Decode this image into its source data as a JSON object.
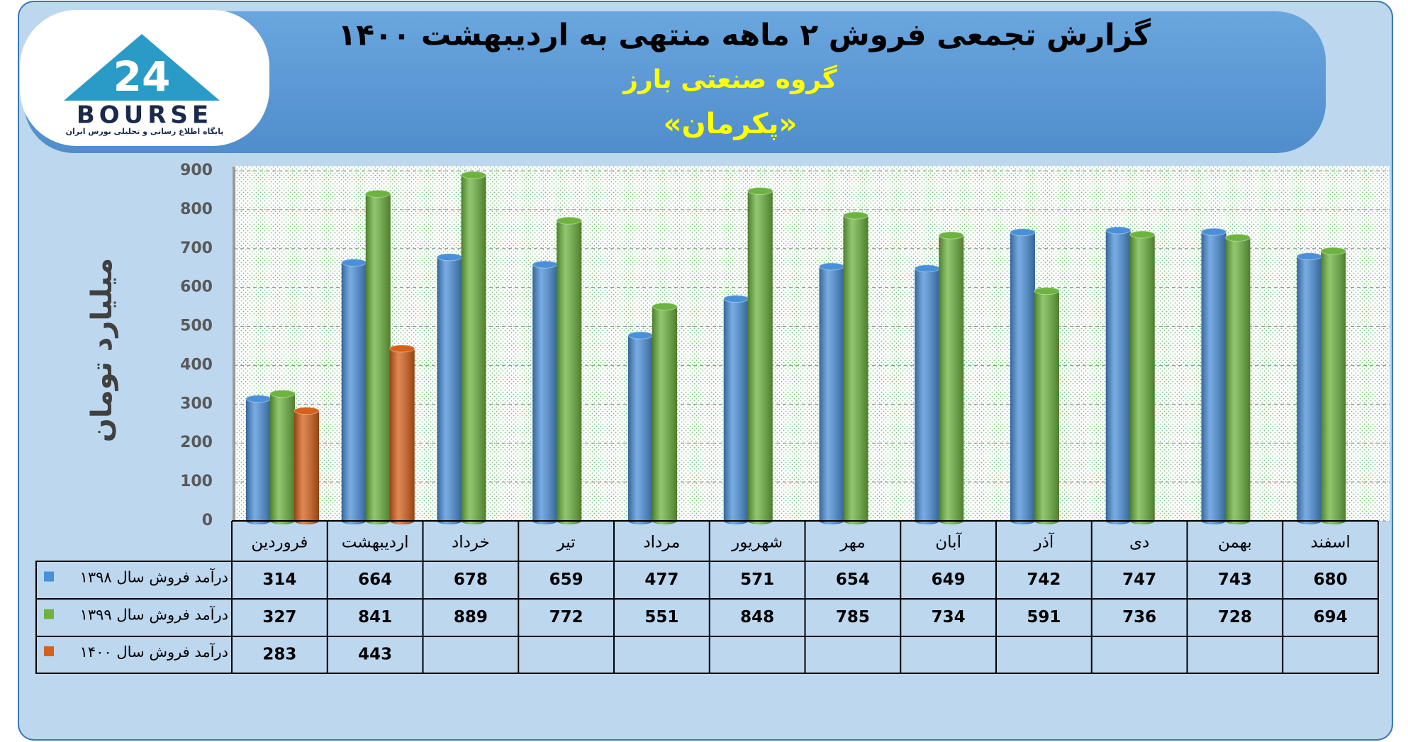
{
  "chart_data": {
    "type": "bar",
    "title": "گزارش تجمعی فروش ۲ ماهه منتهی به اردیبهشت ۱۴۰۰",
    "subtitle": "گروه صنعتی بارز",
    "subtitle2": "«پکرمان»",
    "y_label": "میلیارد تومان",
    "logo": {
      "number": "24",
      "name": "BOURSE",
      "tagline": "پایگاه اطلاع رسانی و تحلیلی بورس ایران"
    },
    "categories": [
      "فروردین",
      "اردیبهشت",
      "خرداد",
      "تیر",
      "مرداد",
      "شهریور",
      "مهر",
      "آبان",
      "آذر",
      "دی",
      "بهمن",
      "اسفند"
    ],
    "series": [
      {
        "name": "درآمد فروش سال ۱۳۹۸",
        "color": "#4a90d9",
        "values": [
          314,
          664,
          678,
          659,
          477,
          571,
          654,
          649,
          742,
          747,
          743,
          680
        ]
      },
      {
        "name": "درآمد فروش سال ۱۳۹۹",
        "color": "#6db33f",
        "values": [
          327,
          841,
          889,
          772,
          551,
          848,
          785,
          734,
          591,
          736,
          728,
          694
        ]
      },
      {
        "name": "درآمد فروش سال ۱۴۰۰",
        "color": "#d5601a",
        "values": [
          283,
          443,
          null,
          null,
          null,
          null,
          null,
          null,
          null,
          null,
          null,
          null
        ]
      }
    ],
    "ylim": [
      0,
      900
    ],
    "yticks": [
      0,
      100,
      200,
      300,
      400,
      500,
      600,
      700,
      800,
      900
    ],
    "grid": true
  }
}
